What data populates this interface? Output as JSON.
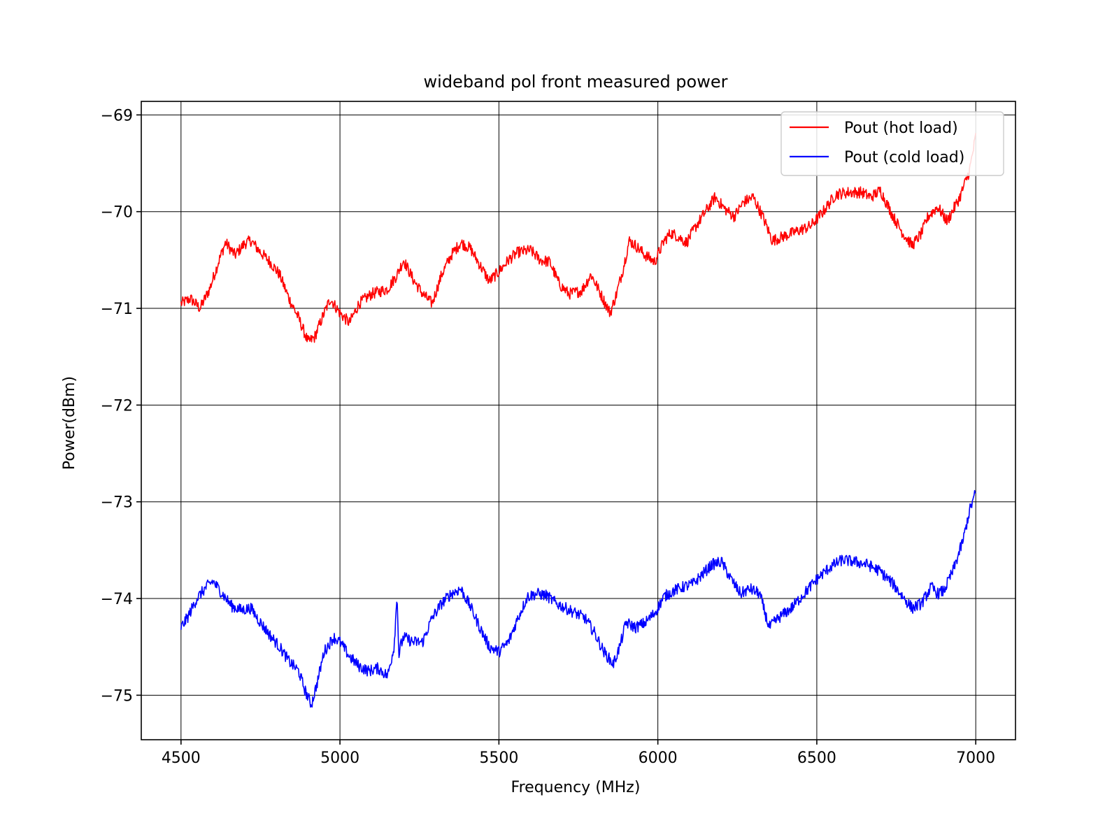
{
  "chart_data": {
    "type": "line",
    "title": "wideband pol front measured power",
    "xlabel": "Frequency (MHz)",
    "ylabel": "Power(dBm)",
    "xlim": [
      4375,
      7125
    ],
    "ylim": [
      -75.46,
      -68.86
    ],
    "xticks": [
      4500,
      5000,
      5500,
      6000,
      6500,
      7000
    ],
    "yticks": [
      -75,
      -74,
      -73,
      -72,
      -71,
      -70,
      -69
    ],
    "xtick_labels": [
      "4500",
      "5000",
      "5500",
      "6000",
      "6500",
      "7000"
    ],
    "ytick_labels": [
      "−75",
      "−74",
      "−73",
      "−72",
      "−71",
      "−70",
      "−69"
    ],
    "grid": true,
    "legend_position": "top-right",
    "noise_amplitude": 0.06,
    "series": [
      {
        "name": "Pout (hot load)",
        "color": "#ff0000",
        "x": [
          4500,
          4530,
          4560,
          4590,
          4620,
          4640,
          4670,
          4700,
          4720,
          4750,
          4780,
          4810,
          4840,
          4870,
          4900,
          4920,
          4950,
          4970,
          5000,
          5030,
          5060,
          5100,
          5150,
          5180,
          5200,
          5230,
          5260,
          5290,
          5320,
          5350,
          5380,
          5410,
          5440,
          5470,
          5500,
          5530,
          5560,
          5600,
          5630,
          5660,
          5690,
          5720,
          5760,
          5790,
          5820,
          5850,
          5870,
          5890,
          5910,
          5930,
          5960,
          5990,
          6020,
          6040,
          6060,
          6090,
          6120,
          6150,
          6180,
          6210,
          6240,
          6270,
          6300,
          6330,
          6360,
          6400,
          6440,
          6480,
          6520,
          6560,
          6600,
          6640,
          6670,
          6700,
          6740,
          6770,
          6800,
          6830,
          6850,
          6880,
          6910,
          6950,
          6980,
          7000
        ],
        "y": [
          -70.95,
          -70.9,
          -71.0,
          -70.8,
          -70.5,
          -70.32,
          -70.45,
          -70.33,
          -70.3,
          -70.42,
          -70.52,
          -70.65,
          -70.9,
          -71.1,
          -71.35,
          -71.3,
          -71.05,
          -70.9,
          -71.05,
          -71.15,
          -70.95,
          -70.85,
          -70.8,
          -70.65,
          -70.5,
          -70.7,
          -70.85,
          -70.95,
          -70.65,
          -70.45,
          -70.32,
          -70.38,
          -70.55,
          -70.72,
          -70.62,
          -70.5,
          -70.42,
          -70.4,
          -70.5,
          -70.52,
          -70.75,
          -70.85,
          -70.82,
          -70.65,
          -70.85,
          -71.05,
          -70.85,
          -70.6,
          -70.3,
          -70.35,
          -70.45,
          -70.52,
          -70.3,
          -70.22,
          -70.25,
          -70.32,
          -70.15,
          -70.0,
          -69.85,
          -69.97,
          -70.05,
          -69.9,
          -69.85,
          -70.05,
          -70.3,
          -70.25,
          -70.2,
          -70.15,
          -70.0,
          -69.82,
          -69.8,
          -69.8,
          -69.85,
          -69.78,
          -70.05,
          -70.22,
          -70.35,
          -70.22,
          -70.05,
          -69.95,
          -70.1,
          -69.85,
          -69.58,
          -69.22
        ]
      },
      {
        "name": "Pout (cold load)",
        "color": "#0000ff",
        "x": [
          4500,
          4520,
          4550,
          4580,
          4600,
          4630,
          4660,
          4690,
          4720,
          4750,
          4780,
          4810,
          4840,
          4870,
          4890,
          4910,
          4930,
          4950,
          4980,
          5000,
          5030,
          5060,
          5090,
          5120,
          5150,
          5170,
          5180,
          5185,
          5190,
          5200,
          5230,
          5260,
          5290,
          5320,
          5350,
          5380,
          5410,
          5440,
          5470,
          5500,
          5530,
          5560,
          5590,
          5620,
          5650,
          5680,
          5710,
          5740,
          5770,
          5800,
          5830,
          5860,
          5880,
          5900,
          5930,
          5960,
          5990,
          6020,
          6050,
          6080,
          6110,
          6140,
          6170,
          6200,
          6230,
          6260,
          6290,
          6320,
          6350,
          6380,
          6420,
          6460,
          6500,
          6540,
          6580,
          6620,
          6660,
          6700,
          6740,
          6770,
          6800,
          6830,
          6860,
          6880,
          6900,
          6930,
          6960,
          6980,
          7000
        ],
        "y": [
          -74.3,
          -74.2,
          -74.0,
          -73.88,
          -73.82,
          -73.95,
          -74.08,
          -74.12,
          -74.1,
          -74.25,
          -74.38,
          -74.5,
          -74.65,
          -74.75,
          -74.95,
          -75.1,
          -74.85,
          -74.55,
          -74.4,
          -74.45,
          -74.6,
          -74.7,
          -74.75,
          -74.72,
          -74.8,
          -74.5,
          -73.95,
          -74.6,
          -74.5,
          -74.4,
          -74.45,
          -74.45,
          -74.2,
          -74.05,
          -73.95,
          -73.9,
          -74.08,
          -74.3,
          -74.5,
          -74.55,
          -74.45,
          -74.2,
          -73.98,
          -73.95,
          -73.97,
          -74.05,
          -74.1,
          -74.15,
          -74.2,
          -74.35,
          -74.55,
          -74.68,
          -74.5,
          -74.25,
          -74.3,
          -74.25,
          -74.15,
          -73.98,
          -73.92,
          -73.88,
          -73.85,
          -73.75,
          -73.65,
          -73.62,
          -73.8,
          -73.95,
          -73.9,
          -73.95,
          -74.3,
          -74.2,
          -74.1,
          -73.95,
          -73.8,
          -73.68,
          -73.6,
          -73.62,
          -73.65,
          -73.72,
          -73.85,
          -73.98,
          -74.1,
          -74.05,
          -73.88,
          -73.95,
          -73.92,
          -73.7,
          -73.4,
          -73.1,
          -72.9
        ]
      }
    ]
  }
}
